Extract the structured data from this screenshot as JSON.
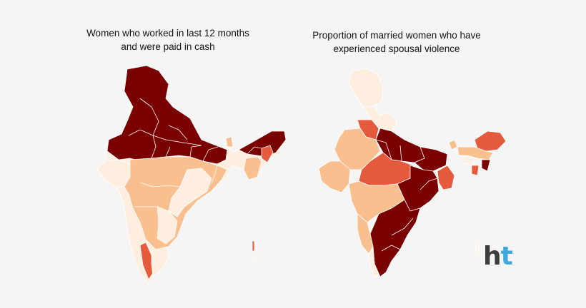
{
  "maps": [
    {
      "title_lines": [
        "Women who worked in last 12 months",
        "and were paid in cash"
      ]
    },
    {
      "title_lines": [
        "Proportion of married women who have",
        "experienced spousal violence"
      ]
    }
  ],
  "legend_colors": {
    "very_high": "#7a0000",
    "high": "#e55a3c",
    "medium": "#f9bf8f",
    "low": "#fdeee0"
  },
  "logo": {
    "part1": "h",
    "part2": "t"
  }
}
